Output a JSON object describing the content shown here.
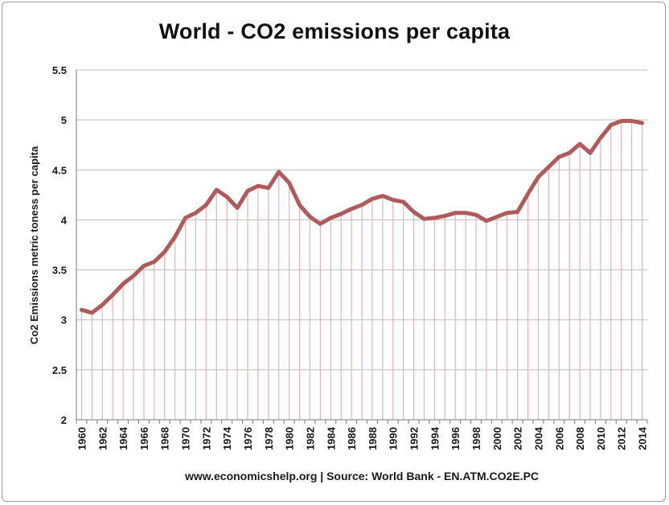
{
  "chart_data": {
    "type": "line",
    "title": "World - CO2 emissions per capita",
    "xlabel": "",
    "ylabel": "Co2 Emissions metric toness per capita",
    "footer": "www.economicshelp.org | Source: World Bank - EN.ATM.CO2E.PC",
    "ylim": [
      2,
      5.5
    ],
    "yticks": [
      "2",
      "2.5",
      "3",
      "3.5",
      "4",
      "4.5",
      "5",
      "5.5"
    ],
    "ytick_values": [
      2,
      2.5,
      3,
      3.5,
      4,
      4.5,
      5,
      5.5
    ],
    "x": [
      1960,
      1961,
      1962,
      1963,
      1964,
      1965,
      1966,
      1967,
      1968,
      1969,
      1970,
      1971,
      1972,
      1973,
      1974,
      1975,
      1976,
      1977,
      1978,
      1979,
      1980,
      1981,
      1982,
      1983,
      1984,
      1985,
      1986,
      1987,
      1988,
      1989,
      1990,
      1991,
      1992,
      1993,
      1994,
      1995,
      1996,
      1997,
      1998,
      1999,
      2000,
      2001,
      2002,
      2003,
      2004,
      2005,
      2006,
      2007,
      2008,
      2009,
      2010,
      2011,
      2012,
      2013,
      2014
    ],
    "xtick_labels": [
      "1960",
      "1962",
      "1964",
      "1966",
      "1968",
      "1970",
      "1972",
      "1974",
      "1976",
      "1978",
      "1980",
      "1982",
      "1984",
      "1986",
      "1988",
      "1990",
      "1992",
      "1994",
      "1996",
      "1998",
      "2000",
      "2002",
      "2004",
      "2006",
      "2008",
      "2010",
      "2012",
      "2014"
    ],
    "series": [
      {
        "name": "CO2 emissions per capita",
        "color": "#b05a5a",
        "values": [
          3.1,
          3.07,
          3.15,
          3.25,
          3.36,
          3.44,
          3.54,
          3.58,
          3.68,
          3.83,
          4.02,
          4.07,
          4.15,
          4.3,
          4.23,
          4.12,
          4.29,
          4.34,
          4.32,
          4.48,
          4.37,
          4.15,
          4.03,
          3.96,
          4.02,
          4.06,
          4.11,
          4.15,
          4.21,
          4.24,
          4.2,
          4.18,
          4.08,
          4.01,
          4.02,
          4.04,
          4.07,
          4.07,
          4.05,
          3.99,
          4.03,
          4.07,
          4.08,
          4.26,
          4.43,
          4.53,
          4.63,
          4.67,
          4.76,
          4.67,
          4.82,
          4.95,
          4.99,
          4.99,
          4.97
        ]
      }
    ],
    "colors": {
      "line": "#b05a5a",
      "droplines": "#e4b5b5",
      "axis": "#7a7a7a",
      "grid": "#bdbdbd"
    }
  }
}
